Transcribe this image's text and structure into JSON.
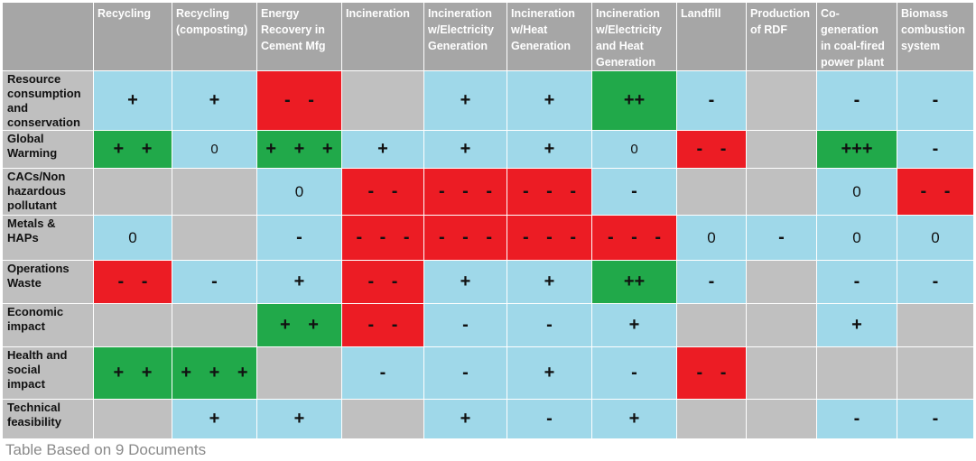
{
  "colors": {
    "blue": "#9fd8e9",
    "green": "#21a94a",
    "red": "#ec1c24",
    "gray": "#c0c0c0",
    "header": "#a6a6a6"
  },
  "columns": [
    "Recycling",
    "Recycling\n(composting)",
    "Energy\nRecovery in\nCement Mfg",
    "Incineration",
    "Incineration\nw/Electricity\nGeneration",
    "Incineration\nw/Heat\nGeneration",
    "Incineration\nw/Electricity\nand Heat\nGeneration",
    "Landfill",
    "Production\nof RDF",
    "Co-\ngeneration\nin coal-fired\npower plant",
    "Biomass\ncombustion\nsystem"
  ],
  "rows": [
    {
      "label": "Resource\nconsumption\nand\nconservation",
      "cells": [
        {
          "v": "+",
          "c": "blue"
        },
        {
          "v": "+",
          "c": "blue"
        },
        {
          "v": "- -",
          "c": "red"
        },
        {
          "v": "",
          "c": "gray"
        },
        {
          "v": "+",
          "c": "blue"
        },
        {
          "v": "+",
          "c": "blue"
        },
        {
          "v": "++",
          "c": "green"
        },
        {
          "v": "-",
          "c": "blue"
        },
        {
          "v": "",
          "c": "gray"
        },
        {
          "v": "-",
          "c": "blue"
        },
        {
          "v": "-",
          "c": "blue"
        }
      ]
    },
    {
      "label": "Global\nWarming",
      "cells": [
        {
          "v": "+ +",
          "c": "green"
        },
        {
          "v": "0",
          "c": "blue",
          "s": "small"
        },
        {
          "v": "+ + +",
          "c": "green"
        },
        {
          "v": "+",
          "c": "blue"
        },
        {
          "v": "+",
          "c": "blue"
        },
        {
          "v": "+",
          "c": "blue"
        },
        {
          "v": "0",
          "c": "blue",
          "s": "small"
        },
        {
          "v": "- -",
          "c": "red"
        },
        {
          "v": "",
          "c": "gray"
        },
        {
          "v": "+++",
          "c": "green"
        },
        {
          "v": "-",
          "c": "blue"
        }
      ]
    },
    {
      "label": "CACs/Non\nhazardous\npollutant",
      "cells": [
        {
          "v": "",
          "c": "gray"
        },
        {
          "v": "",
          "c": "gray"
        },
        {
          "v": "0",
          "c": "blue",
          "s": "zero"
        },
        {
          "v": "- -",
          "c": "red"
        },
        {
          "v": "- - -",
          "c": "red"
        },
        {
          "v": "- - -",
          "c": "red"
        },
        {
          "v": "-",
          "c": "blue"
        },
        {
          "v": "",
          "c": "gray"
        },
        {
          "v": "",
          "c": "gray"
        },
        {
          "v": "0",
          "c": "blue",
          "s": "zero"
        },
        {
          "v": "- -",
          "c": "red"
        }
      ]
    },
    {
      "label": "Metals &\nHAPs",
      "cells": [
        {
          "v": "0",
          "c": "blue",
          "s": "zero"
        },
        {
          "v": "",
          "c": "gray"
        },
        {
          "v": "-",
          "c": "blue"
        },
        {
          "v": "- - -",
          "c": "red"
        },
        {
          "v": "- - -",
          "c": "red"
        },
        {
          "v": "- - -",
          "c": "red"
        },
        {
          "v": "- - -",
          "c": "red"
        },
        {
          "v": "0",
          "c": "blue",
          "s": "zero"
        },
        {
          "v": "-",
          "c": "blue"
        },
        {
          "v": "0",
          "c": "blue",
          "s": "zero"
        },
        {
          "v": "0",
          "c": "blue",
          "s": "zero"
        }
      ]
    },
    {
      "label": "Operations\nWaste",
      "cells": [
        {
          "v": "- -",
          "c": "red"
        },
        {
          "v": "-",
          "c": "blue"
        },
        {
          "v": "+",
          "c": "blue"
        },
        {
          "v": "- -",
          "c": "red"
        },
        {
          "v": "+",
          "c": "blue"
        },
        {
          "v": "+",
          "c": "blue"
        },
        {
          "v": "++",
          "c": "green"
        },
        {
          "v": "-",
          "c": "blue"
        },
        {
          "v": "",
          "c": "gray"
        },
        {
          "v": "-",
          "c": "blue"
        },
        {
          "v": "-",
          "c": "blue"
        }
      ]
    },
    {
      "label": "Economic\nimpact",
      "cells": [
        {
          "v": "",
          "c": "gray"
        },
        {
          "v": "",
          "c": "gray"
        },
        {
          "v": "+ +",
          "c": "green"
        },
        {
          "v": "- -",
          "c": "red"
        },
        {
          "v": "-",
          "c": "blue"
        },
        {
          "v": "-",
          "c": "blue"
        },
        {
          "v": "+",
          "c": "blue"
        },
        {
          "v": "",
          "c": "gray"
        },
        {
          "v": "",
          "c": "gray"
        },
        {
          "v": "+",
          "c": "blue"
        },
        {
          "v": "",
          "c": "gray"
        }
      ]
    },
    {
      "label": "Health and\nsocial\nimpact",
      "cells": [
        {
          "v": "+ +",
          "c": "green"
        },
        {
          "v": "+ + +",
          "c": "green"
        },
        {
          "v": "",
          "c": "gray"
        },
        {
          "v": "-",
          "c": "blue"
        },
        {
          "v": "-",
          "c": "blue"
        },
        {
          "v": "+",
          "c": "blue"
        },
        {
          "v": "-",
          "c": "blue"
        },
        {
          "v": "- -",
          "c": "red"
        },
        {
          "v": "",
          "c": "gray"
        },
        {
          "v": "",
          "c": "gray"
        },
        {
          "v": "",
          "c": "gray"
        }
      ]
    },
    {
      "label": "Technical\nfeasibility",
      "cells": [
        {
          "v": "",
          "c": "gray"
        },
        {
          "v": "+",
          "c": "blue"
        },
        {
          "v": "+",
          "c": "blue"
        },
        {
          "v": "",
          "c": "gray"
        },
        {
          "v": "+",
          "c": "blue"
        },
        {
          "v": "-",
          "c": "blue"
        },
        {
          "v": "+",
          "c": "blue"
        },
        {
          "v": "",
          "c": "gray"
        },
        {
          "v": "",
          "c": "gray"
        },
        {
          "v": "-",
          "c": "blue"
        },
        {
          "v": "-",
          "c": "blue"
        }
      ]
    }
  ],
  "footnote": "Table Based on 9 Documents"
}
